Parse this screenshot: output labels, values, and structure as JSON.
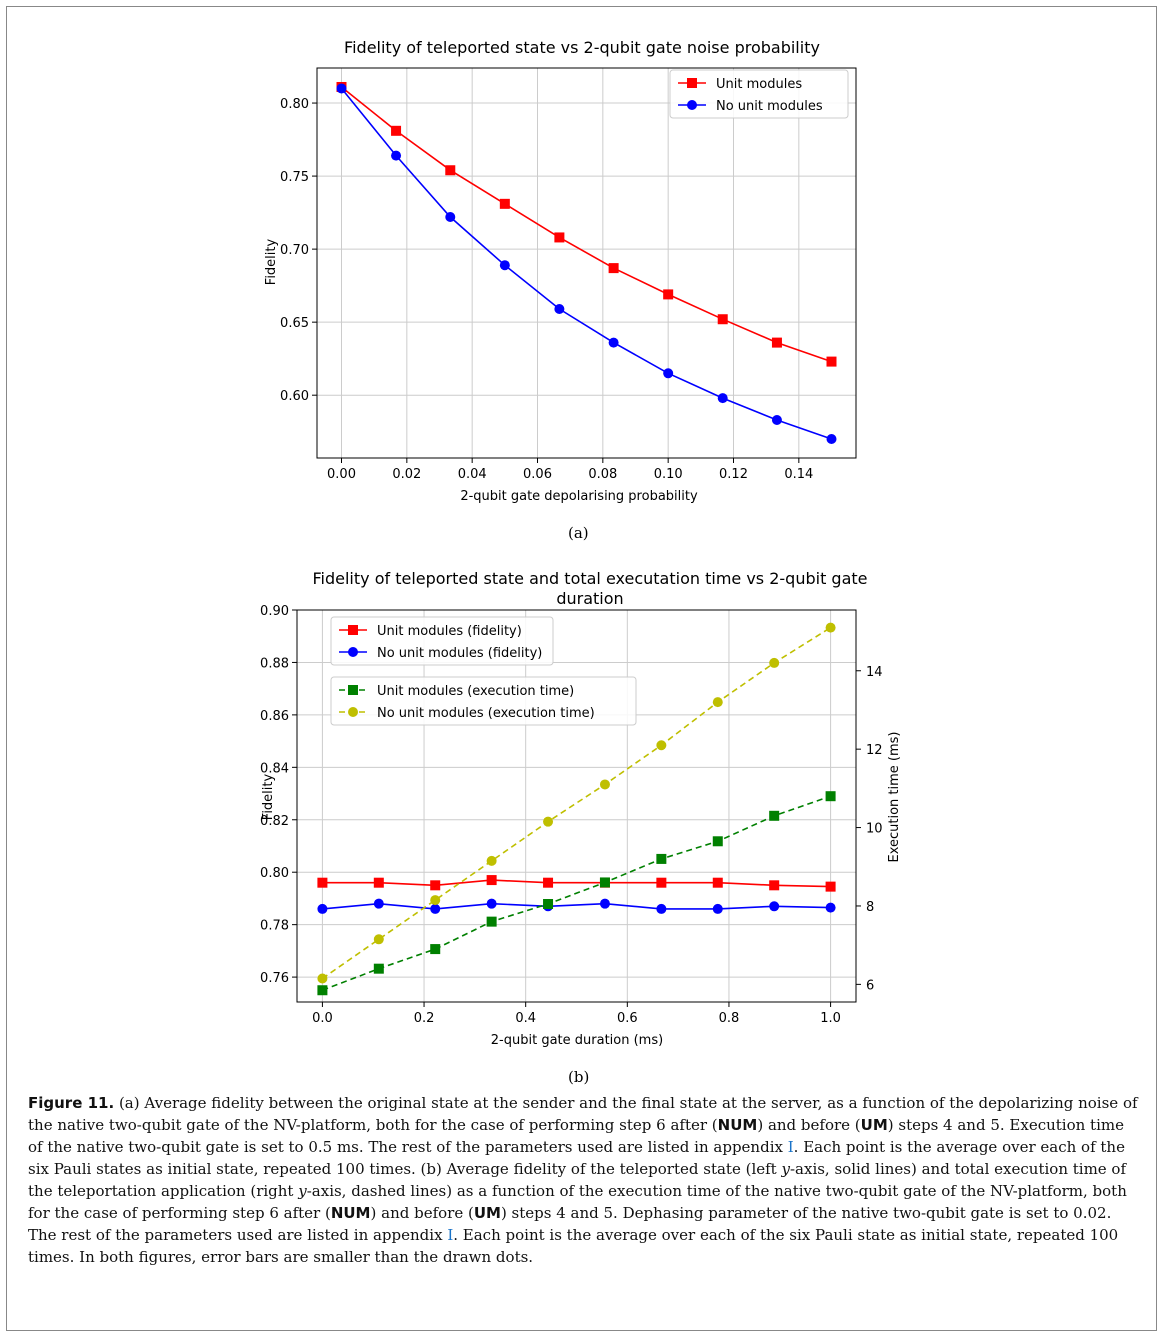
{
  "chart_data": [
    {
      "type": "line",
      "title": "Fidelity of teleported state vs 2-qubit gate noise probability",
      "xlabel": "2-qubit gate depolarising probability",
      "ylabel": "Fidelity",
      "xlim": [
        -0.0075,
        0.1575
      ],
      "ylim": [
        0.557,
        0.824
      ],
      "xticks": [
        0.0,
        0.02,
        0.04,
        0.06,
        0.08,
        0.1,
        0.12,
        0.14
      ],
      "xtick_labels": [
        "0.00",
        "0.02",
        "0.04",
        "0.06",
        "0.08",
        "0.10",
        "0.12",
        "0.14"
      ],
      "yticks": [
        0.6,
        0.65,
        0.7,
        0.75,
        0.8
      ],
      "ytick_labels": [
        "0.60",
        "0.65",
        "0.70",
        "0.75",
        "0.80"
      ],
      "grid": true,
      "legend": "top-right",
      "x": [
        0.0,
        0.0167,
        0.0333,
        0.05,
        0.0667,
        0.0833,
        0.1,
        0.1167,
        0.1333,
        0.15
      ],
      "series": [
        {
          "name": "Unit modules",
          "color": "#ff0000",
          "marker": "square",
          "values": [
            0.811,
            0.781,
            0.754,
            0.731,
            0.708,
            0.687,
            0.669,
            0.652,
            0.636,
            0.623
          ]
        },
        {
          "name": "No unit modules",
          "color": "#0000ff",
          "marker": "circle",
          "values": [
            0.81,
            0.764,
            0.722,
            0.689,
            0.659,
            0.636,
            0.615,
            0.598,
            0.583,
            0.57
          ]
        }
      ]
    },
    {
      "type": "line",
      "title": "Fidelity of teleported state and total executation time vs 2-qubit gate",
      "title_line2": "duration",
      "xlabel": "2-qubit gate duration (ms)",
      "ylabel": "Fidelity",
      "y2label": "Execution time (ms)",
      "xlim": [
        -0.05,
        1.05
      ],
      "ylim": [
        0.7505,
        0.9
      ],
      "y2lim": [
        5.55,
        15.55
      ],
      "xticks": [
        0.0,
        0.2,
        0.4,
        0.6,
        0.8,
        1.0
      ],
      "xtick_labels": [
        "0.0",
        "0.2",
        "0.4",
        "0.6",
        "0.8",
        "1.0"
      ],
      "yticks": [
        0.76,
        0.78,
        0.8,
        0.82,
        0.84,
        0.86,
        0.88,
        0.9
      ],
      "ytick_labels": [
        "0.76",
        "0.78",
        "0.80",
        "0.82",
        "0.84",
        "0.86",
        "0.88",
        "0.90"
      ],
      "y2ticks": [
        6,
        8,
        10,
        12,
        14
      ],
      "y2tick_labels": [
        "6",
        "8",
        "10",
        "12",
        "14"
      ],
      "grid": true,
      "legend": "top-left",
      "x": [
        0.0,
        0.111,
        0.222,
        0.333,
        0.444,
        0.556,
        0.667,
        0.778,
        0.889,
        1.0
      ],
      "series": [
        {
          "name": "Unit modules (fidelity)",
          "color": "#ff0000",
          "marker": "square",
          "dash": false,
          "axis": "left",
          "values": [
            0.796,
            0.796,
            0.795,
            0.797,
            0.796,
            0.796,
            0.796,
            0.796,
            0.795,
            0.7945
          ]
        },
        {
          "name": "No unit modules (fidelity)",
          "color": "#0000ff",
          "marker": "circle",
          "dash": false,
          "axis": "left",
          "values": [
            0.786,
            0.788,
            0.786,
            0.788,
            0.787,
            0.788,
            0.786,
            0.786,
            0.787,
            0.7865
          ]
        },
        {
          "name": "Unit modules (execution time)",
          "color": "#008000",
          "marker": "square",
          "dash": true,
          "axis": "right",
          "values": [
            5.85,
            6.4,
            6.9,
            7.6,
            8.05,
            8.6,
            9.2,
            9.65,
            10.3,
            10.8
          ]
        },
        {
          "name": "No unit modules (execution time)",
          "color": "#bfbf00",
          "marker": "circle",
          "dash": true,
          "axis": "right",
          "values": [
            6.15,
            7.15,
            8.15,
            9.15,
            10.15,
            11.1,
            12.1,
            13.2,
            14.2,
            15.1
          ]
        }
      ]
    }
  ],
  "subcaptions": {
    "a": "(a)",
    "b": "(b)"
  },
  "caption": {
    "label": "Figure 11.",
    "p1": "(a) Average fidelity between the original state at the sender and the final state at the server, as a function of the depolarizing noise of the native two-qubit gate of the NV-platform, both for the case of performing step 6 after (",
    "num1": "NUM",
    "p2": ") and before (",
    "um1": "UM",
    "p3": ") steps 4 and 5. Execution time of the native two-qubit gate is set to 0.5 ms. The rest of the parameters used are listed in appendix ",
    "appendix1": "I",
    "p4": ". Each point is the average over each of the six Pauli states as initial state, repeated 100 times. (b) Average fidelity of the teleported state (left ",
    "y1": "y",
    "p5": "-axis, solid lines) and total execution time of the teleportation application (right ",
    "y2": "y",
    "p6": "-axis, dashed lines) as a function of the execution time of the native two-qubit gate of the NV-platform, both for the case of performing step 6 after (",
    "num2": "NUM",
    "p7": ") and before (",
    "um2": "UM",
    "p8": ") steps 4 and 5. Dephasing parameter of the native two-qubit gate is set to 0.02. The rest of the parameters used are listed in appendix ",
    "appendix2": "I",
    "p9": ". Each point is the average over each of the six Pauli state as initial state, repeated 100 times. In both figures, error bars are smaller than the drawn dots."
  }
}
